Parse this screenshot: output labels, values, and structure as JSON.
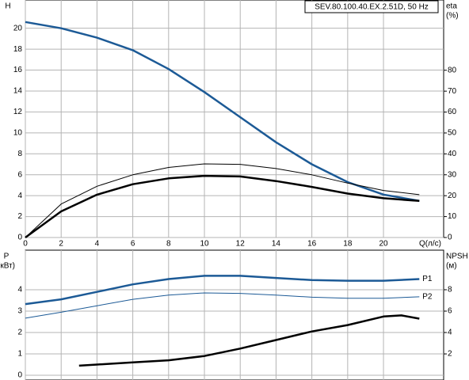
{
  "chart_data": [
    {
      "type": "line",
      "title": "SEV.80.100.40.EX.2.51D, 50 Hz",
      "x_label": "Q(л/с)",
      "y_label": "H",
      "y2_label": [
        "eta",
        "(%)"
      ],
      "xlim": [
        0,
        23.36
      ],
      "xticks": [
        0,
        2,
        4,
        6,
        8,
        10,
        12,
        14,
        16,
        18,
        20
      ],
      "ylim": [
        0,
        22.7
      ],
      "yticks": [
        0,
        2,
        4,
        6,
        8,
        10,
        12,
        14,
        16,
        18,
        20
      ],
      "y2lim": [
        0,
        113.6
      ],
      "y2ticks": [
        0,
        10,
        20,
        30,
        40,
        50,
        60,
        70,
        80
      ],
      "grid": true,
      "series": [
        {
          "color": "#1c5a96",
          "width": 2.5,
          "x": [
            0,
            2,
            4,
            6,
            8,
            10,
            12,
            14,
            16,
            18,
            20,
            22
          ],
          "values": [
            20.6,
            20.0,
            19.1,
            17.9,
            16.1,
            13.9,
            11.5,
            9.1,
            7.0,
            5.3,
            4.1,
            3.5
          ]
        },
        {
          "color": "#000000",
          "width": 1,
          "axis": "y2",
          "x": [
            0,
            2,
            4,
            6,
            8,
            10,
            12,
            14,
            16,
            18,
            20,
            22
          ],
          "values": [
            0,
            16,
            24.5,
            30,
            33.5,
            35.2,
            35,
            33,
            30,
            26,
            22.5,
            20.5
          ]
        },
        {
          "color": "#000000",
          "width": 2.5,
          "axis": "y2",
          "x": [
            0,
            2,
            4,
            6,
            8,
            10,
            12,
            14,
            16,
            18,
            20,
            22
          ],
          "values": [
            0,
            12.5,
            20.5,
            25.5,
            28.3,
            29.5,
            29.2,
            27,
            24.2,
            21,
            18.8,
            17.5
          ]
        }
      ]
    },
    {
      "type": "line",
      "y_label": [
        "P",
        "(кВт)"
      ],
      "y2_label": [
        "NPSH",
        "(м)"
      ],
      "xlim": [
        0,
        23.36
      ],
      "xticks": [
        0,
        2,
        4,
        6,
        8,
        10,
        12,
        14,
        16,
        18,
        20
      ],
      "ylim": [
        -0.22,
        5.85
      ],
      "yticks": [
        0,
        1,
        2,
        3,
        4
      ],
      "y2lim": [
        -0.44,
        11.7
      ],
      "y2ticks": [
        2,
        4,
        6,
        8
      ],
      "grid": true,
      "series": [
        {
          "name": "P1",
          "color": "#1c5a96",
          "width": 2.5,
          "x": [
            0,
            2,
            4,
            6,
            8,
            10,
            12,
            14,
            16,
            18,
            20,
            22
          ],
          "values": [
            3.33,
            3.55,
            3.9,
            4.25,
            4.5,
            4.65,
            4.65,
            4.55,
            4.45,
            4.42,
            4.42,
            4.5
          ]
        },
        {
          "name": "P2",
          "color": "#1c5a96",
          "width": 1,
          "x": [
            0,
            2,
            4,
            6,
            8,
            10,
            12,
            14,
            16,
            18,
            20,
            22
          ],
          "values": [
            2.67,
            2.95,
            3.25,
            3.55,
            3.75,
            3.85,
            3.83,
            3.75,
            3.65,
            3.6,
            3.6,
            3.67
          ]
        },
        {
          "color": "#000000",
          "width": 2.5,
          "axis": "y2",
          "x": [
            3,
            4,
            6,
            8,
            10,
            12,
            14,
            16,
            18,
            20,
            21,
            22
          ],
          "values": [
            0.9,
            1.0,
            1.2,
            1.4,
            1.8,
            2.5,
            3.3,
            4.1,
            4.7,
            5.5,
            5.6,
            5.3
          ]
        }
      ]
    }
  ]
}
